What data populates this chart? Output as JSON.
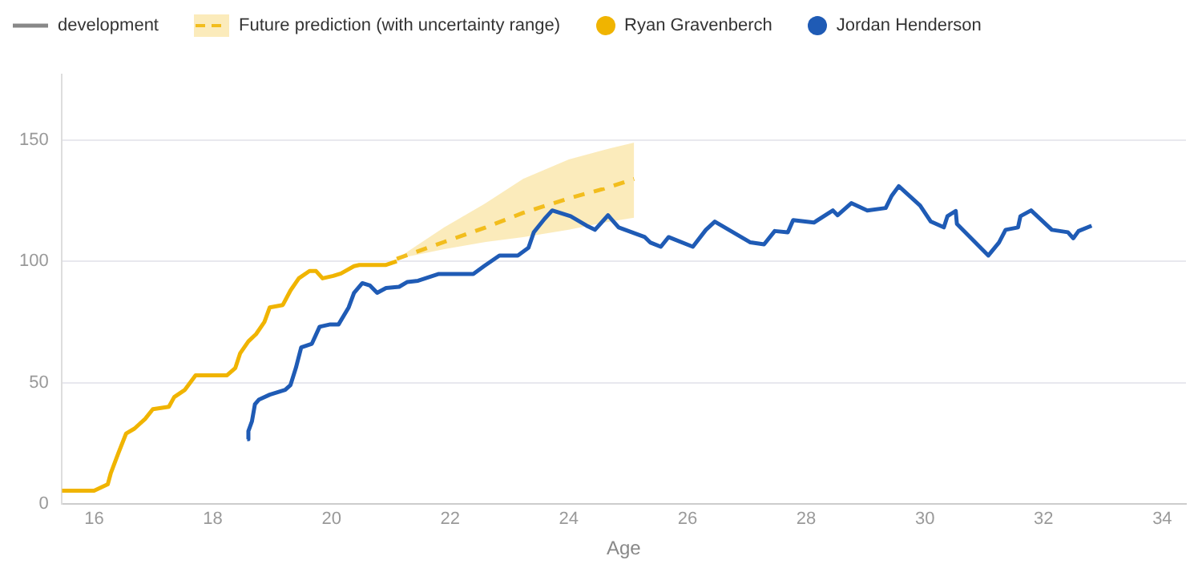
{
  "chart_data": {
    "type": "line",
    "xlabel": "Age",
    "annotations": [
      "development"
    ],
    "xlim": [
      15.45,
      34.4
    ],
    "xticks": [
      16,
      18,
      20,
      22,
      24,
      26,
      28,
      30,
      32,
      34
    ],
    "ylim": [
      0,
      177
    ],
    "yticks": [
      0,
      50,
      100,
      150
    ],
    "grid": "y",
    "legend": "top",
    "marker": "none",
    "series": [
      {
        "name": "Future prediction (with uncertainty range)",
        "color": "#f2bd1d",
        "line_style": "dashed",
        "x": [
          21.1,
          21.9,
          22.6,
          23.23,
          24.0,
          24.6,
          25.1
        ],
        "values": [
          101,
          108,
          114,
          120,
          126,
          130,
          134
        ],
        "lower": [
          101,
          105,
          108,
          110,
          113,
          116,
          118
        ],
        "upper": [
          101,
          114,
          124,
          134,
          142,
          146,
          149
        ]
      },
      {
        "name": "Ryan Gravenberch",
        "color": "#f0b400",
        "x": [
          15.46,
          16.0,
          16.23,
          16.28,
          16.41,
          16.54,
          16.68,
          16.86,
          16.99,
          17.26,
          17.35,
          17.53,
          17.71,
          18.24,
          18.38,
          18.46,
          18.6,
          18.73,
          18.87,
          18.96,
          19.18,
          19.31,
          19.45,
          19.63,
          19.74,
          19.85,
          20.03,
          20.16,
          20.38,
          20.47,
          20.92,
          21.1
        ],
        "values": [
          5.4,
          5.4,
          8,
          12.5,
          21,
          29,
          31,
          35,
          39,
          40,
          44,
          47,
          53,
          53,
          56,
          62,
          67,
          70,
          75,
          81,
          82,
          88,
          93,
          96,
          96,
          93,
          94,
          95,
          98,
          98.5,
          98.5,
          100
        ]
      },
      {
        "name": "Jordan Henderson",
        "color": "#1f5bb5",
        "x": [
          18.58,
          18.6,
          18.66,
          18.71,
          18.78,
          18.96,
          19.22,
          19.31,
          19.4,
          19.49,
          19.67,
          19.8,
          19.98,
          20.12,
          20.29,
          20.38,
          20.52,
          20.65,
          20.77,
          20.92,
          21.14,
          21.28,
          21.46,
          21.81,
          22.39,
          22.57,
          22.83,
          23.14,
          23.32,
          23.41,
          23.59,
          23.72,
          24.03,
          24.3,
          24.44,
          24.66,
          24.84,
          25.28,
          25.37,
          25.55,
          25.68,
          26.09,
          26.31,
          26.46,
          27.06,
          27.29,
          27.47,
          27.69,
          27.78,
          28.13,
          28.45,
          28.53,
          28.76,
          29.03,
          29.34,
          29.44,
          29.56,
          29.92,
          30.1,
          30.32,
          30.38,
          30.52,
          30.54,
          31.07,
          31.25,
          31.36,
          31.57,
          31.61,
          31.79,
          32.14,
          32.41,
          32.5,
          32.59,
          32.81
        ],
        "values": [
          26.6,
          30,
          34,
          41,
          43,
          45,
          47,
          49,
          56,
          64.5,
          66,
          73,
          74,
          74,
          81,
          87,
          91,
          90,
          87,
          89,
          89.5,
          91.5,
          92,
          94.8,
          94.8,
          98,
          102.4,
          102.4,
          105.6,
          112,
          117.5,
          121,
          118.6,
          114.7,
          113,
          119,
          114,
          110,
          107.8,
          106,
          110,
          106,
          113,
          116.4,
          107.8,
          107,
          112.5,
          112,
          117,
          116,
          121,
          119,
          124,
          121,
          122,
          127,
          131,
          123,
          116.4,
          114,
          118.6,
          120.8,
          115.4,
          102.4,
          107.8,
          113,
          114,
          118.6,
          121,
          113,
          112,
          109.5,
          112.5,
          114.7
        ]
      }
    ]
  }
}
